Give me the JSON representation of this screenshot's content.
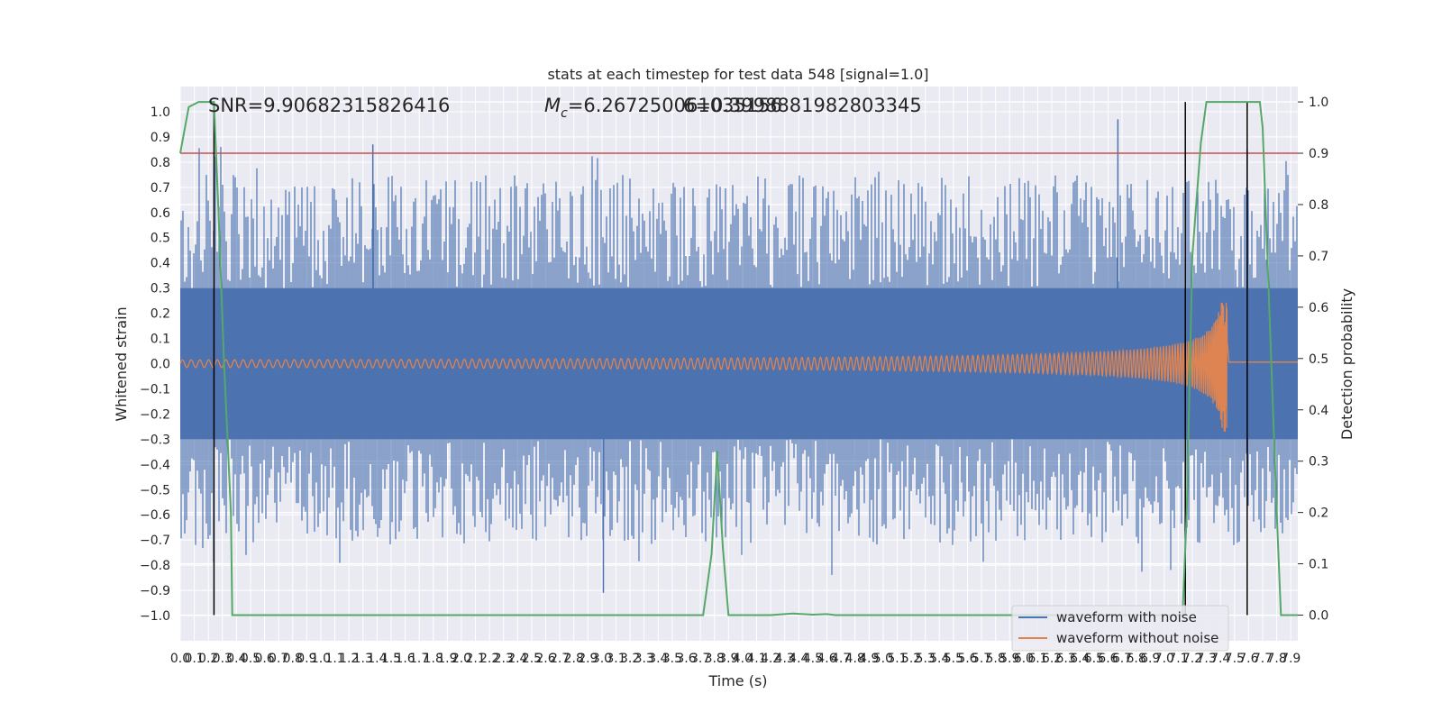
{
  "chart_data": {
    "type": "line",
    "title": "stats at each timestep for test data 548 [signal=1.0]",
    "xlabel": "Time (s)",
    "ylabel": "Whitened strain",
    "y2label": "Detection probability",
    "annotations": {
      "snr": "SNR=9.90682315826416",
      "mc_symbol": "M",
      "mc_subscript": "c",
      "mc_value": "=6.267250061035156",
      "mc_overlap": "6=0.39988819828033​45"
    },
    "xlim": [
      0.0,
      7.95
    ],
    "ylim": [
      -1.1,
      1.1
    ],
    "y2lim": [
      -0.05,
      1.03
    ],
    "grid": true,
    "x_ticks": [
      "0.0",
      "0.1",
      "0.2",
      "0.3",
      "0.4",
      "0.5",
      "0.6",
      "0.7",
      "0.8",
      "0.9",
      "1.0",
      "1.1",
      "1.2",
      "1.3",
      "1.4",
      "1.5",
      "1.6",
      "1.7",
      "1.8",
      "1.9",
      "2.0",
      "2.1",
      "2.2",
      "2.3",
      "2.4",
      "2.5",
      "2.6",
      "2.7",
      "2.8",
      "2.9",
      "3.0",
      "3.1",
      "3.2",
      "3.3",
      "3.4",
      "3.5",
      "3.6",
      "3.7",
      "3.8",
      "3.9",
      "4.0",
      "4.1",
      "4.2",
      "4.3",
      "4.4",
      "4.5",
      "4.6",
      "4.7",
      "4.8",
      "4.9",
      "5.0",
      "5.1",
      "5.2",
      "5.3",
      "5.4",
      "5.5",
      "5.6",
      "5.7",
      "5.8",
      "5.9",
      "6.0",
      "6.1",
      "6.2",
      "6.3",
      "6.4",
      "6.5",
      "6.6",
      "6.7",
      "6.8",
      "6.9",
      "7.0",
      "7.1",
      "7.2",
      "7.3",
      "7.4",
      "7.5",
      "7.6",
      "7.7",
      "7.8",
      "7.9"
    ],
    "y_ticks": [
      "1.0",
      "0.9",
      "0.8",
      "0.7",
      "0.6",
      "0.5",
      "0.4",
      "0.3",
      "0.2",
      "0.1",
      "0.0",
      "−0.1",
      "−0.2",
      "−0.3",
      "−0.4",
      "−0.5",
      "−0.6",
      "−0.7",
      "−0.8",
      "−0.9",
      "−1.0"
    ],
    "y2_ticks": [
      "1.0",
      "0.9",
      "0.8",
      "0.7",
      "0.6",
      "0.5",
      "0.4",
      "0.3",
      "0.2",
      "0.1",
      "0.0"
    ],
    "series": [
      {
        "name": "waveform with noise",
        "color": "#4c72b0",
        "envelope": 0.3,
        "max_spikes": [
          [
            1.37,
            0.87
          ],
          [
            6.67,
            0.97
          ],
          [
            7.59,
            0.85
          ],
          [
            3.01,
            -0.91
          ]
        ]
      },
      {
        "name": "waveform without noise",
        "color": "#dd8452",
        "chirp_amplitude_start": 0.015,
        "chirp_amplitude_peak": 0.27,
        "merger_time": 7.45
      },
      {
        "name": "detection probability",
        "color": "#55a868",
        "axis": "right",
        "points": [
          [
            0.0,
            0.9
          ],
          [
            0.06,
            0.99
          ],
          [
            0.13,
            1.0
          ],
          [
            0.24,
            1.0
          ],
          [
            0.27,
            0.8
          ],
          [
            0.31,
            0.5
          ],
          [
            0.36,
            0.2
          ],
          [
            0.37,
            0.0
          ],
          [
            3.72,
            0.0
          ],
          [
            3.76,
            0.08
          ],
          [
            3.78,
            0.12
          ],
          [
            3.82,
            0.32
          ],
          [
            3.86,
            0.13
          ],
          [
            3.9,
            0.0
          ],
          [
            4.2,
            0.0
          ],
          [
            4.3,
            0.002
          ],
          [
            4.36,
            0.003
          ],
          [
            4.5,
            0.001
          ],
          [
            4.6,
            0.002
          ],
          [
            4.66,
            0.0
          ],
          [
            7.13,
            0.0
          ],
          [
            7.16,
            0.2
          ],
          [
            7.2,
            0.7
          ],
          [
            7.26,
            0.92
          ],
          [
            7.3,
            1.0
          ],
          [
            7.68,
            1.0
          ],
          [
            7.7,
            0.95
          ],
          [
            7.76,
            0.5
          ],
          [
            7.8,
            0.2
          ],
          [
            7.83,
            0.0
          ],
          [
            7.95,
            0.0
          ]
        ]
      }
    ],
    "threshold": {
      "axis": "right",
      "value": 0.9,
      "color": "#c44e52"
    },
    "event_lines": [
      0.24,
      7.15,
      7.59
    ],
    "legend": {
      "placement": "lower-right",
      "entries": [
        "waveform with noise",
        "waveform without noise"
      ]
    }
  }
}
